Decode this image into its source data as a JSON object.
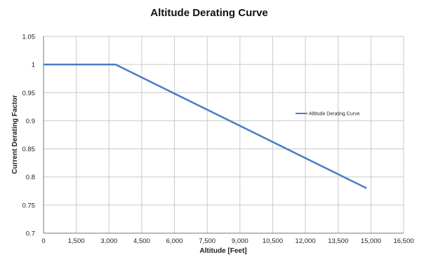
{
  "chart_data": {
    "type": "line",
    "title": "Altitude Derating Curve",
    "xlabel": "Altitude [Feet]",
    "ylabel": "Current Derating Factor",
    "xlim": [
      0,
      16500
    ],
    "ylim": [
      0.7,
      1.05
    ],
    "x_ticks": [
      0,
      1500,
      3000,
      4500,
      6000,
      7500,
      9000,
      10500,
      12000,
      13500,
      15000,
      16500
    ],
    "x_tick_labels": [
      "0",
      "1,500",
      "3,000",
      "4,500",
      "6,000",
      "7,500",
      "9,000",
      "10,500",
      "12,000",
      "13,500",
      "15,000",
      "16,500"
    ],
    "y_ticks": [
      0.7,
      0.75,
      0.8,
      0.85,
      0.9,
      0.95,
      1.0,
      1.05
    ],
    "y_tick_labels": [
      "0.7",
      "0.75",
      "0.8",
      "0.85",
      "0.9",
      "0.95",
      "1",
      "1.05"
    ],
    "grid": true,
    "legend_position": "right",
    "series": [
      {
        "name": "Altitude Derating Curve",
        "color": "#4a7cc7",
        "x": [
          0,
          3300,
          14800
        ],
        "y": [
          1.0,
          1.0,
          0.78
        ]
      }
    ]
  }
}
